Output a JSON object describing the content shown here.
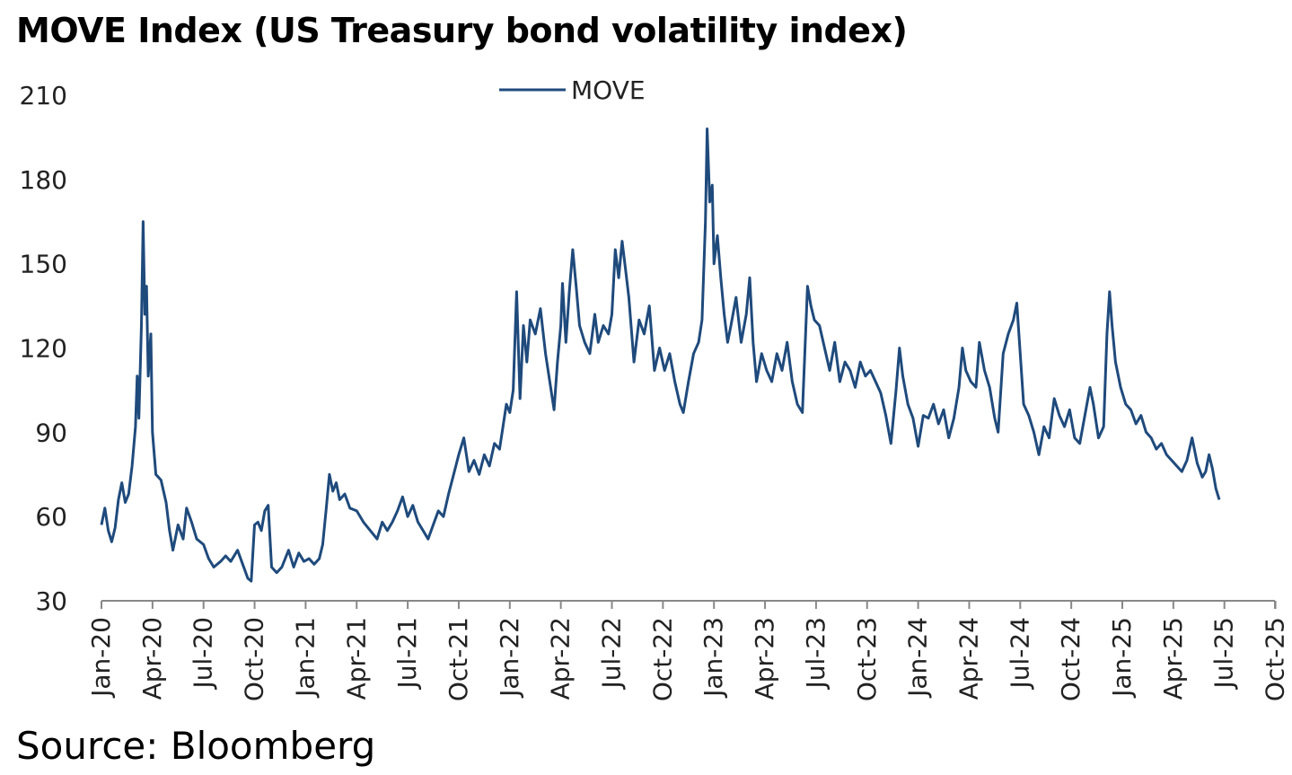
{
  "title": "MOVE Index (US Treasury bond volatility index)",
  "source": "Source: Bloomberg",
  "colors": {
    "series": "#1f4a7c",
    "axis": "#888888"
  },
  "chart_data": {
    "type": "line",
    "title": "MOVE Index (US Treasury bond volatility index)",
    "xlabel": "",
    "ylabel": "",
    "ylim": [
      30,
      210
    ],
    "yticks": [
      30,
      60,
      90,
      120,
      150,
      180,
      210
    ],
    "grid": false,
    "legend_position": "top-center",
    "x_tick_labels": [
      "Jan-20",
      "Apr-20",
      "Jul-20",
      "Oct-20",
      "Jan-21",
      "Apr-21",
      "Jul-21",
      "Oct-21",
      "Jan-22",
      "Apr-22",
      "Jul-22",
      "Oct-22",
      "Jan-23",
      "Apr-23",
      "Jul-23",
      "Oct-23",
      "Jan-24",
      "Apr-24",
      "Jul-24",
      "Oct-24",
      "Jan-25",
      "Apr-25",
      "Jul-25",
      "Oct-25"
    ],
    "x_unit": "months since Jan-20",
    "series": [
      {
        "name": "MOVE",
        "points": [
          [
            0,
            57
          ],
          [
            0.2,
            63
          ],
          [
            0.4,
            55
          ],
          [
            0.6,
            51
          ],
          [
            0.8,
            56
          ],
          [
            1.0,
            66
          ],
          [
            1.2,
            72
          ],
          [
            1.4,
            65
          ],
          [
            1.6,
            68
          ],
          [
            1.8,
            78
          ],
          [
            2.0,
            92
          ],
          [
            2.1,
            110
          ],
          [
            2.2,
            95
          ],
          [
            2.35,
            128
          ],
          [
            2.45,
            165
          ],
          [
            2.55,
            132
          ],
          [
            2.65,
            142
          ],
          [
            2.75,
            110
          ],
          [
            2.9,
            125
          ],
          [
            3.0,
            90
          ],
          [
            3.2,
            75
          ],
          [
            3.5,
            73
          ],
          [
            3.8,
            65
          ],
          [
            4.0,
            55
          ],
          [
            4.2,
            48
          ],
          [
            4.5,
            57
          ],
          [
            4.8,
            52
          ],
          [
            5.0,
            63
          ],
          [
            5.3,
            58
          ],
          [
            5.6,
            52
          ],
          [
            6.0,
            50
          ],
          [
            6.3,
            45
          ],
          [
            6.6,
            42
          ],
          [
            7.0,
            44
          ],
          [
            7.3,
            46
          ],
          [
            7.6,
            44
          ],
          [
            8.0,
            48
          ],
          [
            8.3,
            43
          ],
          [
            8.6,
            38
          ],
          [
            8.8,
            37
          ],
          [
            9.0,
            57
          ],
          [
            9.2,
            58
          ],
          [
            9.4,
            55
          ],
          [
            9.6,
            62
          ],
          [
            9.8,
            64
          ],
          [
            10.0,
            42
          ],
          [
            10.3,
            40
          ],
          [
            10.6,
            42
          ],
          [
            11.0,
            48
          ],
          [
            11.3,
            42
          ],
          [
            11.6,
            47
          ],
          [
            11.9,
            44
          ],
          [
            12.2,
            45
          ],
          [
            12.5,
            43
          ],
          [
            12.8,
            45
          ],
          [
            13.0,
            50
          ],
          [
            13.2,
            62
          ],
          [
            13.4,
            75
          ],
          [
            13.6,
            69
          ],
          [
            13.8,
            72
          ],
          [
            14.0,
            66
          ],
          [
            14.3,
            68
          ],
          [
            14.6,
            63
          ],
          [
            15.0,
            62
          ],
          [
            15.4,
            58
          ],
          [
            15.8,
            55
          ],
          [
            16.2,
            52
          ],
          [
            16.5,
            58
          ],
          [
            16.8,
            55
          ],
          [
            17.1,
            58
          ],
          [
            17.4,
            62
          ],
          [
            17.7,
            67
          ],
          [
            18.0,
            60
          ],
          [
            18.3,
            64
          ],
          [
            18.6,
            58
          ],
          [
            18.9,
            55
          ],
          [
            19.2,
            52
          ],
          [
            19.5,
            57
          ],
          [
            19.8,
            62
          ],
          [
            20.1,
            60
          ],
          [
            20.4,
            68
          ],
          [
            20.7,
            75
          ],
          [
            21.0,
            82
          ],
          [
            21.3,
            88
          ],
          [
            21.6,
            76
          ],
          [
            21.9,
            80
          ],
          [
            22.2,
            75
          ],
          [
            22.5,
            82
          ],
          [
            22.8,
            78
          ],
          [
            23.1,
            86
          ],
          [
            23.4,
            84
          ],
          [
            23.6,
            92
          ],
          [
            23.8,
            100
          ],
          [
            24.0,
            97
          ],
          [
            24.2,
            105
          ],
          [
            24.4,
            140
          ],
          [
            24.6,
            102
          ],
          [
            24.8,
            128
          ],
          [
            25.0,
            115
          ],
          [
            25.2,
            130
          ],
          [
            25.5,
            125
          ],
          [
            25.8,
            134
          ],
          [
            26.1,
            118
          ],
          [
            26.4,
            106
          ],
          [
            26.6,
            98
          ],
          [
            26.8,
            115
          ],
          [
            27.0,
            128
          ],
          [
            27.1,
            143
          ],
          [
            27.3,
            122
          ],
          [
            27.5,
            140
          ],
          [
            27.7,
            155
          ],
          [
            27.9,
            142
          ],
          [
            28.1,
            128
          ],
          [
            28.4,
            122
          ],
          [
            28.7,
            118
          ],
          [
            29.0,
            132
          ],
          [
            29.2,
            122
          ],
          [
            29.5,
            128
          ],
          [
            29.8,
            125
          ],
          [
            30.0,
            132
          ],
          [
            30.2,
            155
          ],
          [
            30.4,
            145
          ],
          [
            30.6,
            158
          ],
          [
            30.8,
            148
          ],
          [
            31.0,
            138
          ],
          [
            31.3,
            115
          ],
          [
            31.6,
            130
          ],
          [
            31.9,
            125
          ],
          [
            32.2,
            135
          ],
          [
            32.5,
            112
          ],
          [
            32.8,
            120
          ],
          [
            33.1,
            112
          ],
          [
            33.4,
            118
          ],
          [
            33.7,
            108
          ],
          [
            34.0,
            100
          ],
          [
            34.2,
            97
          ],
          [
            34.5,
            108
          ],
          [
            34.8,
            118
          ],
          [
            35.1,
            122
          ],
          [
            35.3,
            130
          ],
          [
            35.5,
            165
          ],
          [
            35.6,
            198
          ],
          [
            35.75,
            172
          ],
          [
            35.9,
            178
          ],
          [
            36.0,
            150
          ],
          [
            36.2,
            160
          ],
          [
            36.4,
            145
          ],
          [
            36.6,
            132
          ],
          [
            36.8,
            122
          ],
          [
            37.0,
            128
          ],
          [
            37.3,
            138
          ],
          [
            37.6,
            122
          ],
          [
            37.9,
            132
          ],
          [
            38.1,
            145
          ],
          [
            38.3,
            122
          ],
          [
            38.5,
            108
          ],
          [
            38.8,
            118
          ],
          [
            39.1,
            112
          ],
          [
            39.4,
            108
          ],
          [
            39.7,
            118
          ],
          [
            40.0,
            112
          ],
          [
            40.3,
            122
          ],
          [
            40.6,
            108
          ],
          [
            40.9,
            100
          ],
          [
            41.2,
            97
          ],
          [
            41.5,
            142
          ],
          [
            41.7,
            135
          ],
          [
            41.9,
            130
          ],
          [
            42.2,
            128
          ],
          [
            42.5,
            120
          ],
          [
            42.8,
            112
          ],
          [
            43.1,
            122
          ],
          [
            43.4,
            108
          ],
          [
            43.7,
            115
          ],
          [
            44.0,
            112
          ],
          [
            44.3,
            106
          ],
          [
            44.6,
            115
          ],
          [
            44.9,
            110
          ],
          [
            45.2,
            112
          ],
          [
            45.5,
            108
          ],
          [
            45.8,
            104
          ],
          [
            46.1,
            96
          ],
          [
            46.4,
            86
          ],
          [
            46.7,
            105
          ],
          [
            46.9,
            120
          ],
          [
            47.1,
            110
          ],
          [
            47.4,
            100
          ],
          [
            47.7,
            95
          ],
          [
            48.0,
            85
          ],
          [
            48.3,
            96
          ],
          [
            48.6,
            95
          ],
          [
            48.9,
            100
          ],
          [
            49.2,
            93
          ],
          [
            49.5,
            98
          ],
          [
            49.8,
            88
          ],
          [
            50.1,
            95
          ],
          [
            50.4,
            106
          ],
          [
            50.6,
            120
          ],
          [
            50.8,
            112
          ],
          [
            51.1,
            108
          ],
          [
            51.4,
            106
          ],
          [
            51.6,
            122
          ],
          [
            51.9,
            112
          ],
          [
            52.2,
            106
          ],
          [
            52.5,
            95
          ],
          [
            52.7,
            90
          ],
          [
            53.0,
            118
          ],
          [
            53.3,
            125
          ],
          [
            53.6,
            130
          ],
          [
            53.8,
            136
          ],
          [
            54.0,
            118
          ],
          [
            54.2,
            100
          ],
          [
            54.5,
            96
          ],
          [
            54.8,
            90
          ],
          [
            55.1,
            82
          ],
          [
            55.4,
            92
          ],
          [
            55.7,
            88
          ],
          [
            56.0,
            102
          ],
          [
            56.3,
            96
          ],
          [
            56.6,
            92
          ],
          [
            56.9,
            98
          ],
          [
            57.2,
            88
          ],
          [
            57.5,
            86
          ],
          [
            57.8,
            96
          ],
          [
            58.1,
            106
          ],
          [
            58.3,
            100
          ],
          [
            58.6,
            88
          ],
          [
            58.9,
            92
          ],
          [
            59.1,
            125
          ],
          [
            59.25,
            140
          ],
          [
            59.4,
            128
          ],
          [
            59.6,
            115
          ],
          [
            59.9,
            106
          ],
          [
            60.2,
            100
          ],
          [
            60.5,
            98
          ],
          [
            60.8,
            93
          ],
          [
            61.1,
            96
          ],
          [
            61.4,
            90
          ],
          [
            61.7,
            88
          ],
          [
            62.0,
            84
          ],
          [
            62.3,
            86
          ],
          [
            62.6,
            82
          ],
          [
            62.9,
            80
          ],
          [
            63.2,
            78
          ],
          [
            63.5,
            76
          ],
          [
            63.8,
            80
          ],
          [
            64.1,
            88
          ],
          [
            64.4,
            79
          ],
          [
            64.7,
            74
          ],
          [
            64.9,
            76
          ],
          [
            65.1,
            82
          ],
          [
            65.3,
            77
          ],
          [
            65.5,
            70
          ],
          [
            65.7,
            66
          ]
        ]
      }
    ]
  }
}
